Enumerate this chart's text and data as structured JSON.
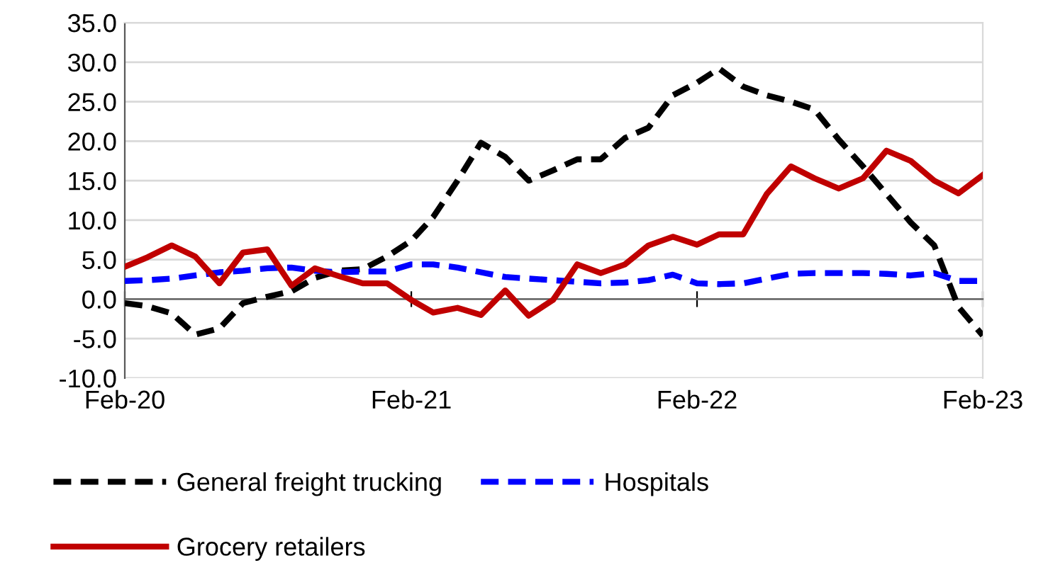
{
  "chart_data": {
    "type": "line",
    "x": [
      "2020-02",
      "2020-03",
      "2020-04",
      "2020-05",
      "2020-06",
      "2020-07",
      "2020-08",
      "2020-09",
      "2020-10",
      "2020-11",
      "2020-12",
      "2021-01",
      "2021-02",
      "2021-03",
      "2021-04",
      "2021-05",
      "2021-06",
      "2021-07",
      "2021-08",
      "2021-09",
      "2021-10",
      "2021-11",
      "2021-12",
      "2022-01",
      "2022-02",
      "2022-03",
      "2022-04",
      "2022-05",
      "2022-06",
      "2022-07",
      "2022-08",
      "2022-09",
      "2022-10",
      "2022-11",
      "2022-12",
      "2023-01",
      "2023-02"
    ],
    "series": [
      {
        "name": "General freight trucking",
        "color": "#000000",
        "line_style": "dashed",
        "values": [
          -0.5,
          -0.9,
          -1.8,
          -4.5,
          -3.7,
          -0.5,
          0.3,
          1.0,
          2.7,
          3.6,
          3.8,
          5.4,
          7.4,
          10.4,
          15.0,
          19.8,
          18.0,
          15.0,
          16.3,
          17.7,
          17.7,
          20.4,
          21.7,
          25.8,
          27.4,
          29.2,
          26.9,
          25.8,
          25.0,
          24.0,
          20.2,
          16.8,
          13.3,
          9.7,
          6.8,
          -1.0,
          -4.6
        ]
      },
      {
        "name": "Hospitals",
        "color": "#0000ff",
        "line_style": "dashed",
        "values": [
          2.3,
          2.4,
          2.6,
          3.0,
          3.4,
          3.6,
          3.9,
          4.0,
          3.6,
          3.4,
          3.5,
          3.5,
          4.4,
          4.4,
          4.0,
          3.4,
          2.8,
          2.6,
          2.4,
          2.2,
          2.0,
          2.1,
          2.4,
          3.1,
          2.0,
          1.9,
          2.0,
          2.6,
          3.2,
          3.3,
          3.3,
          3.3,
          3.2,
          3.0,
          3.3,
          2.3,
          2.3
        ]
      },
      {
        "name": "Grocery retailers",
        "color": "#c00000",
        "line_style": "solid",
        "values": [
          4.1,
          5.3,
          6.8,
          5.4,
          2.0,
          5.9,
          6.3,
          1.7,
          3.9,
          2.9,
          2.0,
          2.0,
          -0.1,
          -1.7,
          -1.1,
          -2.0,
          1.1,
          -2.1,
          -0.1,
          4.4,
          3.3,
          4.4,
          6.8,
          7.9,
          6.9,
          8.2,
          8.2,
          13.3,
          16.8,
          15.3,
          14.0,
          15.3,
          18.8,
          17.5,
          15.0,
          13.4,
          15.7
        ]
      }
    ],
    "xlim": [
      "2020-02",
      "2023-02"
    ],
    "xticks": [
      {
        "value": "2020-02",
        "label": "Feb-20"
      },
      {
        "value": "2021-02",
        "label": "Feb-21"
      },
      {
        "value": "2022-02",
        "label": "Feb-22"
      },
      {
        "value": "2023-02",
        "label": "Feb-23"
      }
    ],
    "ylim": [
      -10,
      35
    ],
    "yticks": [
      {
        "value": -10,
        "label": "-10.0"
      },
      {
        "value": -5,
        "label": "-5.0"
      },
      {
        "value": 0,
        "label": "0.0"
      },
      {
        "value": 5,
        "label": "5.0"
      },
      {
        "value": 10,
        "label": "10.0"
      },
      {
        "value": 15,
        "label": "15.0"
      },
      {
        "value": 20,
        "label": "20.0"
      },
      {
        "value": 25,
        "label": "25.0"
      },
      {
        "value": 30,
        "label": "30.0"
      },
      {
        "value": 35,
        "label": "35.0"
      }
    ],
    "grid": "y",
    "legend": "bottom",
    "marker": "none"
  }
}
